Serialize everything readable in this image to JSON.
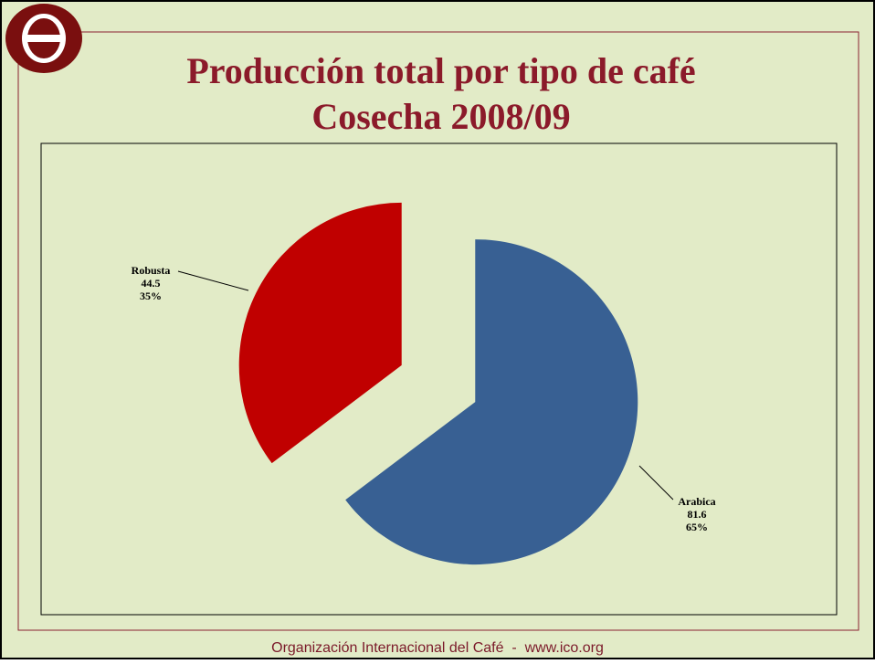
{
  "chart_data": {
    "type": "pie",
    "title": "Producción total por tipo de café",
    "subtitle": "Cosecha 2008/09",
    "categories": [
      "Arabica",
      "Robusta"
    ],
    "values": [
      81.6,
      44.5
    ],
    "percent_labels": [
      "65%",
      "35%"
    ],
    "colors": [
      "#386093",
      "#c00000"
    ],
    "footer": "Organización Internacional del Café  -  www.ico.org"
  }
}
